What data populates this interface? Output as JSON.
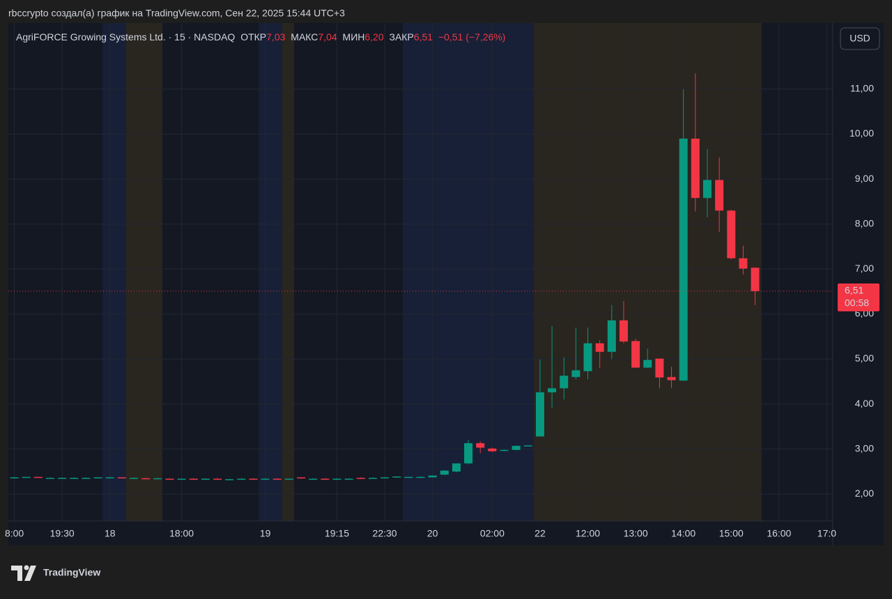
{
  "caption": "rbccrypto создал(а) график на TradingView.com, Сен 22, 2025 15:44 UTC+3",
  "symbol_header": {
    "name": "AgriFORCE Growing Systems Ltd. · 15 · NASDAQ",
    "open_label": "ОТКР",
    "open": "7,03",
    "high_label": "МАКС",
    "high": "7,04",
    "low_label": "МИН",
    "low": "6,20",
    "close_label": "ЗАКР",
    "close": "6,51",
    "change": "−0,51 (−7,26%)"
  },
  "currency_button": "USD",
  "last_price": {
    "price": "6,51",
    "countdown": "00:58"
  },
  "footer": {
    "brand": "TradingView"
  },
  "chart_data": {
    "type": "candlestick",
    "categories": [
      "8:00",
      null,
      null,
      null,
      "19:30",
      null,
      null,
      null,
      "18",
      null,
      null,
      null,
      null,
      null,
      "18:00",
      null,
      null,
      null,
      null,
      null,
      null,
      "19",
      null,
      null,
      null,
      null,
      null,
      "19:15",
      null,
      null,
      null,
      "22:30",
      null,
      null,
      null,
      "20",
      null,
      null,
      null,
      null,
      "02:00",
      null,
      null,
      null,
      "22",
      null,
      null,
      null,
      "12:00",
      null,
      null,
      null,
      "13:00",
      null,
      null,
      null,
      "14:00",
      null,
      null,
      null,
      "15:00",
      null,
      null,
      null,
      "16:00",
      null,
      null,
      null,
      "17:0"
    ],
    "open": [
      2.37,
      2.37,
      2.38,
      2.36,
      2.36,
      2.36,
      2.35,
      2.36,
      2.37,
      2.37,
      2.36,
      2.35,
      2.34,
      2.34,
      2.33,
      2.34,
      2.33,
      2.34,
      2.33,
      2.33,
      2.34,
      2.33,
      2.34,
      2.33,
      2.37,
      2.34,
      2.34,
      2.33,
      2.34,
      2.36,
      2.35,
      2.36,
      2.37,
      2.38,
      2.38,
      2.37,
      2.43,
      2.5,
      2.68,
      3.13,
      3.01,
      2.96,
      2.98,
      3.07,
      3.28,
      4.26,
      4.35,
      4.6,
      4.73,
      5.35,
      5.16,
      5.86,
      5.4,
      4.81,
      5.01,
      4.6,
      4.52,
      9.9,
      8.58,
      8.98,
      8.3,
      7.24,
      7.03,
      null,
      null,
      null,
      null,
      null,
      null
    ],
    "high": [
      2.38,
      2.38,
      2.38,
      2.37,
      2.37,
      2.37,
      2.37,
      2.38,
      2.38,
      2.37,
      2.37,
      2.36,
      2.36,
      2.35,
      2.35,
      2.35,
      2.35,
      2.35,
      2.34,
      2.35,
      2.35,
      2.35,
      2.35,
      2.35,
      2.37,
      2.35,
      2.35,
      2.35,
      2.35,
      2.37,
      2.37,
      2.38,
      2.39,
      2.38,
      2.39,
      2.41,
      2.53,
      2.68,
      3.2,
      3.17,
      3.03,
      2.99,
      3.08,
      3.08,
      4.99,
      5.73,
      5.04,
      5.7,
      5.7,
      5.42,
      6.2,
      6.29,
      5.45,
      5.23,
      5.01,
      4.83,
      11.0,
      11.35,
      9.67,
      9.48,
      8.32,
      7.52,
      7.04,
      null,
      null,
      null,
      null,
      null,
      null
    ],
    "low": [
      2.36,
      2.37,
      2.36,
      2.35,
      2.35,
      2.35,
      2.34,
      2.36,
      2.36,
      2.36,
      2.35,
      2.33,
      2.34,
      2.32,
      2.33,
      2.32,
      2.33,
      2.32,
      2.32,
      2.33,
      2.32,
      2.33,
      2.32,
      2.33,
      2.34,
      2.33,
      2.32,
      2.33,
      2.33,
      2.34,
      2.35,
      2.36,
      2.36,
      2.37,
      2.37,
      2.37,
      2.42,
      2.48,
      2.66,
      2.91,
      2.93,
      2.95,
      2.97,
      3.06,
      3.28,
      3.92,
      4.1,
      4.55,
      4.55,
      4.8,
      5.0,
      5.35,
      4.8,
      4.8,
      4.35,
      4.36,
      4.52,
      8.28,
      8.15,
      7.82,
      7.22,
      6.88,
      6.2,
      null,
      null,
      null,
      null,
      null,
      null
    ],
    "close": [
      2.37,
      2.38,
      2.37,
      2.36,
      2.36,
      2.36,
      2.36,
      2.37,
      2.37,
      2.36,
      2.36,
      2.34,
      2.35,
      2.33,
      2.34,
      2.33,
      2.34,
      2.33,
      2.33,
      2.34,
      2.33,
      2.34,
      2.33,
      2.34,
      2.35,
      2.34,
      2.33,
      2.34,
      2.34,
      2.35,
      2.36,
      2.37,
      2.39,
      2.38,
      2.38,
      2.41,
      2.52,
      2.68,
      3.13,
      3.03,
      2.95,
      2.98,
      3.07,
      3.08,
      4.26,
      4.35,
      4.63,
      4.75,
      5.35,
      5.16,
      5.86,
      5.39,
      4.81,
      4.98,
      4.59,
      4.53,
      9.9,
      8.58,
      8.98,
      8.3,
      7.24,
      7.01,
      6.51,
      null,
      null,
      null,
      null,
      null,
      null
    ],
    "up_color": "#089981",
    "down_color": "#f23645",
    "ylim": [
      1.4,
      12.47
    ],
    "yticks": [
      {
        "value": 2,
        "label": "2,00"
      },
      {
        "value": 3,
        "label": "3,00"
      },
      {
        "value": 4,
        "label": "4,00"
      },
      {
        "value": 5,
        "label": "5,00"
      },
      {
        "value": 6,
        "label": "6,00"
      },
      {
        "value": 7,
        "label": "7,00"
      },
      {
        "value": 8,
        "label": "8,00"
      },
      {
        "value": 9,
        "label": "9,00"
      },
      {
        "value": 10,
        "label": "10,00"
      },
      {
        "value": 11,
        "label": "11,00"
      }
    ],
    "grid": true
  }
}
